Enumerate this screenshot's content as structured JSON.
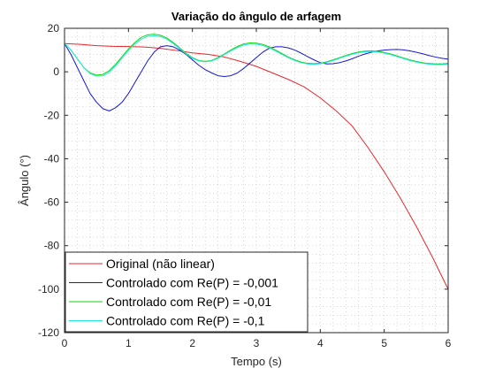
{
  "chart_data": {
    "type": "line",
    "title": "Variação do ângulo de arfagem",
    "xlabel": "Tempo (s)",
    "ylabel": "Ângulo (°)",
    "xlim": [
      0,
      6
    ],
    "ylim": [
      -120,
      20
    ],
    "xticks": [
      0,
      1,
      2,
      3,
      4,
      5,
      6
    ],
    "yticks": [
      -120,
      -100,
      -80,
      -60,
      -40,
      -20,
      0,
      20
    ],
    "grid": "minor dotted",
    "legend_position": "bottom-left",
    "series": [
      {
        "name": "Original (não linear)",
        "color": "#e8272b",
        "x": [
          0,
          0.25,
          0.5,
          0.75,
          1.0,
          1.25,
          1.5,
          1.75,
          2.0,
          2.25,
          2.5,
          2.75,
          3.0,
          3.25,
          3.5,
          3.75,
          4.0,
          4.25,
          4.5,
          4.75,
          5.0,
          5.25,
          5.5,
          5.75,
          6.0
        ],
        "y": [
          13,
          12.6,
          12,
          11.7,
          11.6,
          11.4,
          10.8,
          9.8,
          8.7,
          8.0,
          6.8,
          4.8,
          2.5,
          -0.5,
          -3.5,
          -7,
          -12,
          -18,
          -25,
          -35,
          -46,
          -58,
          -71,
          -85,
          -100
        ]
      },
      {
        "name": "Controlado com Re(P) = -0,001",
        "color": "#1717d4",
        "x": [
          0,
          0.1,
          0.2,
          0.3,
          0.4,
          0.5,
          0.6,
          0.7,
          0.8,
          0.9,
          1.0,
          1.1,
          1.2,
          1.3,
          1.4,
          1.5,
          1.6,
          1.7,
          1.8,
          1.9,
          2.0,
          2.1,
          2.2,
          2.3,
          2.4,
          2.5,
          2.6,
          2.7,
          2.8,
          2.9,
          3.0,
          3.1,
          3.2,
          3.3,
          3.4,
          3.5,
          3.6,
          3.7,
          3.8,
          3.9,
          4.0,
          4.1,
          4.2,
          4.3,
          4.4,
          4.5,
          4.6,
          4.7,
          4.8,
          4.9,
          5.0,
          5.1,
          5.2,
          5.3,
          5.4,
          5.5,
          5.6,
          5.7,
          5.8,
          5.9,
          6.0
        ],
        "y": [
          13,
          8,
          2,
          -4,
          -10,
          -14,
          -17,
          -18,
          -16.5,
          -14,
          -10,
          -5,
          0,
          5,
          9,
          11.5,
          12,
          11.5,
          10,
          8,
          5.5,
          3,
          1,
          -0.5,
          -1.8,
          -2.2,
          -1.8,
          -0.6,
          1.5,
          4,
          6.5,
          9,
          10.8,
          11.5,
          11.5,
          11,
          10,
          8.6,
          7,
          5.5,
          4.2,
          3.6,
          3.7,
          4.2,
          5,
          6,
          7.2,
          8.2,
          9,
          9.6,
          10,
          10.2,
          10.3,
          10.1,
          9.6,
          9,
          8.3,
          7.5,
          6.8,
          6.2,
          5.8
        ]
      },
      {
        "name": "Controlado com Re(P) = -0,01",
        "color": "#16d40f",
        "x": [
          0,
          0.1,
          0.2,
          0.3,
          0.4,
          0.5,
          0.6,
          0.7,
          0.8,
          0.9,
          1.0,
          1.1,
          1.2,
          1.3,
          1.4,
          1.5,
          1.6,
          1.7,
          1.8,
          1.9,
          2.0,
          2.1,
          2.2,
          2.3,
          2.4,
          2.5,
          2.6,
          2.7,
          2.8,
          2.9,
          3.0,
          3.1,
          3.2,
          3.3,
          3.4,
          3.5,
          3.6,
          3.7,
          3.8,
          3.9,
          4.0,
          4.1,
          4.2,
          4.3,
          4.4,
          4.5,
          4.6,
          4.7,
          4.8,
          4.9,
          5.0,
          5.1,
          5.2,
          5.3,
          5.4,
          5.5,
          5.6,
          5.7,
          5.8,
          5.9,
          6.0
        ],
        "y": [
          13,
          10,
          6,
          2,
          -0.5,
          -1.5,
          -1.2,
          0.5,
          3.5,
          7,
          10.5,
          13.5,
          15.8,
          17,
          17.3,
          16.8,
          15.5,
          13.5,
          11,
          8.5,
          6.5,
          5.2,
          4.8,
          5.2,
          6.5,
          8.2,
          10,
          11.6,
          12.8,
          13.3,
          13.2,
          12.6,
          11.5,
          10,
          8.4,
          6.8,
          5.5,
          4.5,
          3.9,
          3.7,
          4,
          4.6,
          5.5,
          6.5,
          7.5,
          8.4,
          9.1,
          9.5,
          9.6,
          9.4,
          8.9,
          8.2,
          7.3,
          6.4,
          5.5,
          4.8,
          4.2,
          3.8,
          3.6,
          3.6,
          3.8
        ]
      },
      {
        "name": "Controlado com Re(P) = -0,1",
        "color": "#1ee8e2",
        "x": [
          0,
          0.1,
          0.2,
          0.3,
          0.4,
          0.5,
          0.6,
          0.7,
          0.8,
          0.9,
          1.0,
          1.1,
          1.2,
          1.3,
          1.4,
          1.5,
          1.6,
          1.7,
          1.8,
          1.9,
          2.0,
          2.1,
          2.2,
          2.3,
          2.4,
          2.5,
          2.6,
          2.7,
          2.8,
          2.9,
          3.0,
          3.1,
          3.2,
          3.3,
          3.4,
          3.5,
          3.6,
          3.7,
          3.8,
          3.9,
          4.0,
          4.1,
          4.2,
          4.3,
          4.4,
          4.5,
          4.6,
          4.7,
          4.8,
          4.9,
          5.0,
          5.1,
          5.2,
          5.3,
          5.4,
          5.5,
          5.6,
          5.7,
          5.8,
          5.9,
          6.0
        ],
        "y": [
          13,
          10,
          6,
          2,
          -0.8,
          -2,
          -1.8,
          -0.2,
          2.8,
          6.3,
          9.8,
          12.8,
          15,
          16.3,
          16.6,
          16.2,
          15,
          13,
          10.6,
          8.2,
          6.2,
          5,
          4.6,
          5,
          6.2,
          7.9,
          9.6,
          11.1,
          12.3,
          12.8,
          12.7,
          12.1,
          11,
          9.6,
          8,
          6.5,
          5.2,
          4.2,
          3.6,
          3.4,
          3.7,
          4.3,
          5.2,
          6.2,
          7.2,
          8.1,
          8.8,
          9.2,
          9.3,
          9.1,
          8.6,
          7.9,
          7,
          6.1,
          5.2,
          4.5,
          3.9,
          3.5,
          3.3,
          3.3,
          3.5
        ]
      }
    ]
  }
}
